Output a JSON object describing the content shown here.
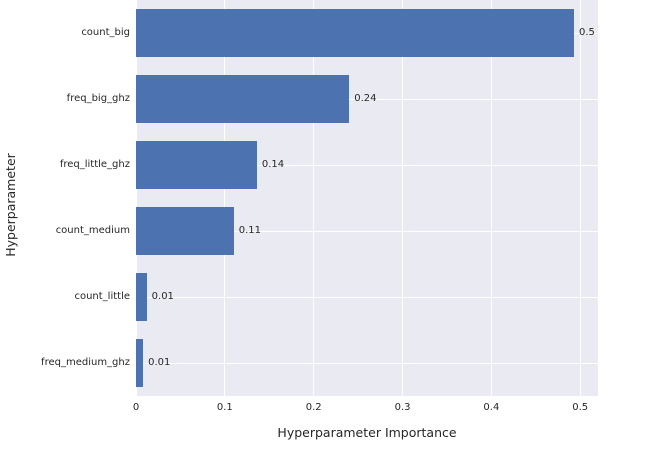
{
  "colors": {
    "figure_background": "#ffffff",
    "plot_background": "#eaeaf2",
    "grid": "#ffffff",
    "bar": "#4c72b0",
    "text": "#262626"
  },
  "chart_data": {
    "type": "bar",
    "orientation": "horizontal",
    "title": "",
    "xlabel": "Hyperparameter Importance",
    "ylabel": "Hyperparameter",
    "categories": [
      "count_big",
      "freq_big_ghz",
      "freq_little_ghz",
      "count_medium",
      "count_little",
      "freq_medium_ghz"
    ],
    "values": [
      0.493,
      0.24,
      0.136,
      0.11,
      0.012,
      0.008
    ],
    "bar_value_labels": [
      "0.5",
      "0.24",
      "0.14",
      "0.11",
      "0.01",
      "0.01"
    ],
    "x_ticks": [
      0,
      0.1,
      0.2,
      0.3,
      0.4,
      0.5
    ],
    "x_tick_labels": [
      "0",
      "0.1",
      "0.2",
      "0.3",
      "0.4",
      "0.5"
    ],
    "xlim": [
      0,
      0.52
    ],
    "grid": true,
    "legend_position": "none"
  }
}
